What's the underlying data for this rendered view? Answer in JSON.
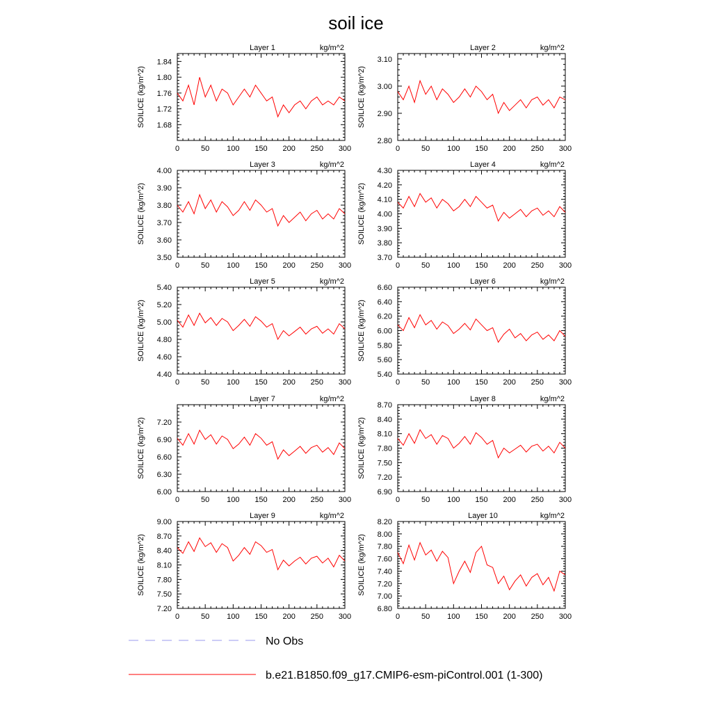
{
  "figure": {
    "title": "soil ice",
    "legend": {
      "obs_label": "No Obs",
      "model_label": "b.e21.B1850.f09_g17.CMIP6-esm-piControl.001 (1-300)",
      "obs_color": "#9999ee",
      "model_color": "#ff0000"
    }
  },
  "chart_data": [
    {
      "type": "line",
      "title": "Layer 1",
      "units": "kg/m^2",
      "ylabel": "SOILICE  (kg/m^2)",
      "xlim": [
        0,
        300
      ],
      "xticks": [
        0,
        50,
        100,
        150,
        200,
        250,
        300
      ],
      "ylim": [
        1.64,
        1.86
      ],
      "yticks": [
        1.68,
        1.72,
        1.76,
        1.8,
        1.84
      ],
      "yformat": 2,
      "series": [
        {
          "color": "#ff0000",
          "x": [
            0,
            10,
            20,
            30,
            40,
            50,
            60,
            70,
            80,
            90,
            100,
            110,
            120,
            130,
            140,
            150,
            160,
            170,
            180,
            190,
            200,
            210,
            220,
            230,
            240,
            250,
            260,
            270,
            280,
            290,
            300
          ],
          "values": [
            1.76,
            1.74,
            1.78,
            1.73,
            1.8,
            1.75,
            1.78,
            1.74,
            1.77,
            1.76,
            1.73,
            1.75,
            1.77,
            1.75,
            1.78,
            1.76,
            1.74,
            1.75,
            1.7,
            1.73,
            1.71,
            1.73,
            1.74,
            1.72,
            1.74,
            1.75,
            1.73,
            1.74,
            1.73,
            1.75,
            1.74
          ]
        }
      ]
    },
    {
      "type": "line",
      "title": "Layer 2",
      "units": "kg/m^2",
      "ylabel": "SOILICE  (kg/m^2)",
      "xlim": [
        0,
        300
      ],
      "xticks": [
        0,
        50,
        100,
        150,
        200,
        250,
        300
      ],
      "ylim": [
        2.8,
        3.12
      ],
      "yticks": [
        2.8,
        2.9,
        3.0,
        3.1
      ],
      "yformat": 2,
      "series": [
        {
          "color": "#ff0000",
          "x": [
            0,
            10,
            20,
            30,
            40,
            50,
            60,
            70,
            80,
            90,
            100,
            110,
            120,
            130,
            140,
            150,
            160,
            170,
            180,
            190,
            200,
            210,
            220,
            230,
            240,
            250,
            260,
            270,
            280,
            290,
            300
          ],
          "values": [
            2.98,
            2.95,
            3.0,
            2.94,
            3.02,
            2.97,
            3.0,
            2.95,
            2.99,
            2.97,
            2.94,
            2.96,
            2.99,
            2.96,
            3.0,
            2.98,
            2.95,
            2.97,
            2.9,
            2.94,
            2.91,
            2.93,
            2.95,
            2.92,
            2.95,
            2.96,
            2.93,
            2.95,
            2.92,
            2.96,
            2.95
          ]
        }
      ]
    },
    {
      "type": "line",
      "title": "Layer 3",
      "units": "kg/m^2",
      "ylabel": "SOILICE  (kg/m^2)",
      "xlim": [
        0,
        300
      ],
      "xticks": [
        0,
        50,
        100,
        150,
        200,
        250,
        300
      ],
      "ylim": [
        3.5,
        4.0
      ],
      "yticks": [
        3.5,
        3.6,
        3.7,
        3.8,
        3.9,
        4.0
      ],
      "yformat": 2,
      "series": [
        {
          "color": "#ff0000",
          "x": [
            0,
            10,
            20,
            30,
            40,
            50,
            60,
            70,
            80,
            90,
            100,
            110,
            120,
            130,
            140,
            150,
            160,
            170,
            180,
            190,
            200,
            210,
            220,
            230,
            240,
            250,
            260,
            270,
            280,
            290,
            300
          ],
          "values": [
            3.8,
            3.76,
            3.82,
            3.75,
            3.86,
            3.78,
            3.83,
            3.76,
            3.82,
            3.79,
            3.74,
            3.77,
            3.82,
            3.77,
            3.83,
            3.8,
            3.76,
            3.78,
            3.68,
            3.74,
            3.7,
            3.73,
            3.76,
            3.71,
            3.75,
            3.77,
            3.72,
            3.75,
            3.72,
            3.78,
            3.75
          ]
        }
      ]
    },
    {
      "type": "line",
      "title": "Layer 4",
      "units": "kg/m^2",
      "ylabel": "SOILICE  (kg/m^2)",
      "xlim": [
        0,
        300
      ],
      "xticks": [
        0,
        50,
        100,
        150,
        200,
        250,
        300
      ],
      "ylim": [
        3.7,
        4.3
      ],
      "yticks": [
        3.7,
        3.8,
        3.9,
        4.0,
        4.1,
        4.2,
        4.3
      ],
      "yformat": 2,
      "series": [
        {
          "color": "#ff0000",
          "x": [
            0,
            10,
            20,
            30,
            40,
            50,
            60,
            70,
            80,
            90,
            100,
            110,
            120,
            130,
            140,
            150,
            160,
            170,
            180,
            190,
            200,
            210,
            220,
            230,
            240,
            250,
            260,
            270,
            280,
            290,
            300
          ],
          "values": [
            4.08,
            4.04,
            4.12,
            4.05,
            4.14,
            4.08,
            4.11,
            4.04,
            4.1,
            4.07,
            4.02,
            4.05,
            4.1,
            4.05,
            4.12,
            4.08,
            4.04,
            4.06,
            3.95,
            4.01,
            3.97,
            4.0,
            4.03,
            3.98,
            4.02,
            4.04,
            3.99,
            4.02,
            3.98,
            4.05,
            4.01
          ]
        }
      ]
    },
    {
      "type": "line",
      "title": "Layer 5",
      "units": "kg/m^2",
      "ylabel": "SOILICE  (kg/m^2)",
      "xlim": [
        0,
        300
      ],
      "xticks": [
        0,
        50,
        100,
        150,
        200,
        250,
        300
      ],
      "ylim": [
        4.4,
        5.4
      ],
      "yticks": [
        4.4,
        4.6,
        4.8,
        5.0,
        5.2,
        5.4
      ],
      "yformat": 2,
      "series": [
        {
          "color": "#ff0000",
          "x": [
            0,
            10,
            20,
            30,
            40,
            50,
            60,
            70,
            80,
            90,
            100,
            110,
            120,
            130,
            140,
            150,
            160,
            170,
            180,
            190,
            200,
            210,
            220,
            230,
            240,
            250,
            260,
            270,
            280,
            290,
            300
          ],
          "values": [
            5.02,
            4.94,
            5.08,
            4.96,
            5.1,
            4.99,
            5.05,
            4.96,
            5.04,
            5.0,
            4.9,
            4.96,
            5.03,
            4.95,
            5.06,
            5.01,
            4.94,
            4.98,
            4.8,
            4.9,
            4.84,
            4.89,
            4.94,
            4.86,
            4.92,
            4.95,
            4.87,
            4.92,
            4.86,
            4.98,
            4.92
          ]
        }
      ]
    },
    {
      "type": "line",
      "title": "Layer 6",
      "units": "kg/m^2",
      "ylabel": "SOILICE  (kg/m^2)",
      "xlim": [
        0,
        300
      ],
      "xticks": [
        0,
        50,
        100,
        150,
        200,
        250,
        300
      ],
      "ylim": [
        5.4,
        6.6
      ],
      "yticks": [
        5.4,
        5.6,
        5.8,
        6.0,
        6.2,
        6.4,
        6.6
      ],
      "yformat": 2,
      "series": [
        {
          "color": "#ff0000",
          "x": [
            0,
            10,
            20,
            30,
            40,
            50,
            60,
            70,
            80,
            90,
            100,
            110,
            120,
            130,
            140,
            150,
            160,
            170,
            180,
            190,
            200,
            210,
            220,
            230,
            240,
            250,
            260,
            270,
            280,
            290,
            300
          ],
          "values": [
            6.08,
            6.0,
            6.18,
            6.04,
            6.22,
            6.08,
            6.14,
            6.02,
            6.12,
            6.07,
            5.96,
            6.02,
            6.1,
            6.01,
            6.16,
            6.08,
            6.0,
            6.04,
            5.84,
            5.95,
            6.02,
            5.9,
            5.96,
            5.86,
            5.94,
            5.98,
            5.88,
            5.94,
            5.86,
            6.0,
            5.92
          ]
        }
      ]
    },
    {
      "type": "line",
      "title": "Layer 7",
      "units": "kg/m^2",
      "ylabel": "SOILICE  (kg/m^2)",
      "xlim": [
        0,
        300
      ],
      "xticks": [
        0,
        50,
        100,
        150,
        200,
        250,
        300
      ],
      "ylim": [
        6.0,
        7.5
      ],
      "yticks": [
        6.0,
        6.3,
        6.6,
        6.9,
        7.2
      ],
      "yformat": 2,
      "series": [
        {
          "color": "#ff0000",
          "x": [
            0,
            10,
            20,
            30,
            40,
            50,
            60,
            70,
            80,
            90,
            100,
            110,
            120,
            130,
            140,
            150,
            160,
            170,
            180,
            190,
            200,
            210,
            220,
            230,
            240,
            250,
            260,
            270,
            280,
            290,
            300
          ],
          "values": [
            6.92,
            6.8,
            7.0,
            6.82,
            7.06,
            6.9,
            6.98,
            6.82,
            6.96,
            6.9,
            6.74,
            6.82,
            6.94,
            6.8,
            7.0,
            6.92,
            6.8,
            6.86,
            6.56,
            6.72,
            6.62,
            6.7,
            6.78,
            6.66,
            6.76,
            6.8,
            6.68,
            6.76,
            6.64,
            6.84,
            6.74
          ]
        }
      ]
    },
    {
      "type": "line",
      "title": "Layer 8",
      "units": "kg/m^2",
      "ylabel": "SOILICE  (kg/m^2)",
      "xlim": [
        0,
        300
      ],
      "xticks": [
        0,
        50,
        100,
        150,
        200,
        250,
        300
      ],
      "ylim": [
        6.9,
        8.7
      ],
      "yticks": [
        6.9,
        7.2,
        7.5,
        7.8,
        8.1,
        8.4,
        8.7
      ],
      "yformat": 2,
      "series": [
        {
          "color": "#ff0000",
          "x": [
            0,
            10,
            20,
            30,
            40,
            50,
            60,
            70,
            80,
            90,
            100,
            110,
            120,
            130,
            140,
            150,
            160,
            170,
            180,
            190,
            200,
            210,
            220,
            230,
            240,
            250,
            260,
            270,
            280,
            290,
            300
          ],
          "values": [
            8.0,
            7.86,
            8.1,
            7.9,
            8.18,
            8.0,
            8.08,
            7.88,
            8.06,
            8.0,
            7.8,
            7.9,
            8.04,
            7.88,
            8.12,
            8.02,
            7.88,
            7.96,
            7.6,
            7.8,
            7.7,
            7.78,
            7.86,
            7.72,
            7.84,
            7.88,
            7.74,
            7.84,
            7.7,
            7.92,
            7.8
          ]
        }
      ]
    },
    {
      "type": "line",
      "title": "Layer 9",
      "units": "kg/m^2",
      "ylabel": "SOILICE  (kg/m^2)",
      "xlim": [
        0,
        300
      ],
      "xticks": [
        0,
        50,
        100,
        150,
        200,
        250,
        300
      ],
      "ylim": [
        7.2,
        9.0
      ],
      "yticks": [
        7.2,
        7.5,
        7.8,
        8.1,
        8.4,
        8.7,
        9.0
      ],
      "yformat": 2,
      "series": [
        {
          "color": "#ff0000",
          "x": [
            0,
            10,
            20,
            30,
            40,
            50,
            60,
            70,
            80,
            90,
            100,
            110,
            120,
            130,
            140,
            150,
            160,
            170,
            180,
            190,
            200,
            210,
            220,
            230,
            240,
            250,
            260,
            270,
            280,
            290,
            300
          ],
          "values": [
            8.46,
            8.34,
            8.58,
            8.38,
            8.66,
            8.48,
            8.56,
            8.36,
            8.54,
            8.46,
            8.18,
            8.3,
            8.46,
            8.32,
            8.58,
            8.5,
            8.36,
            8.42,
            8.0,
            8.2,
            8.08,
            8.18,
            8.26,
            8.12,
            8.24,
            8.28,
            8.14,
            8.24,
            8.06,
            8.3,
            8.18
          ]
        }
      ]
    },
    {
      "type": "line",
      "title": "Layer 10",
      "units": "kg/m^2",
      "ylabel": "SOILICE  (kg/m^2)",
      "xlim": [
        0,
        300
      ],
      "xticks": [
        0,
        50,
        100,
        150,
        200,
        250,
        300
      ],
      "ylim": [
        6.8,
        8.2
      ],
      "yticks": [
        6.8,
        7.0,
        7.2,
        7.4,
        7.6,
        7.8,
        8.0,
        8.2
      ],
      "yformat": 2,
      "series": [
        {
          "color": "#ff0000",
          "x": [
            0,
            10,
            20,
            30,
            40,
            50,
            60,
            70,
            80,
            90,
            100,
            110,
            120,
            130,
            140,
            150,
            160,
            170,
            180,
            190,
            200,
            210,
            220,
            230,
            240,
            250,
            260,
            270,
            280,
            290,
            300
          ],
          "values": [
            7.7,
            7.52,
            7.82,
            7.58,
            7.86,
            7.66,
            7.74,
            7.56,
            7.72,
            7.62,
            7.2,
            7.4,
            7.56,
            7.38,
            7.7,
            7.8,
            7.5,
            7.46,
            7.2,
            7.32,
            7.1,
            7.24,
            7.34,
            7.16,
            7.3,
            7.36,
            7.18,
            7.3,
            7.08,
            7.4,
            7.34
          ]
        }
      ]
    }
  ]
}
